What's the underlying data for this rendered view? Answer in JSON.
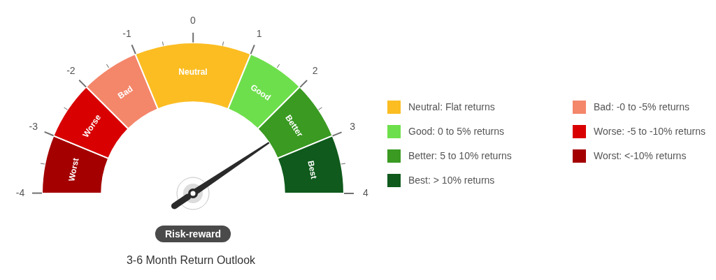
{
  "chart_data": {
    "type": "donut",
    "title": "3-6 Month Return Outlook",
    "xlabel": "Risk-reward",
    "categories": [
      "Worst: <-10% returns",
      "Worse: -5 to -10% returns",
      "Bad: -0 to -5% returns",
      "Neutral: Flat returns",
      "Good: 0 to 5% returns",
      "Better: 5 to 10% returns",
      "Best: > 10% returns"
    ],
    "values": [
      12.5,
      12.5,
      12.5,
      25,
      12.5,
      12.5,
      12.5
    ],
    "value_labels": [
      "Worst",
      "Worse",
      "Bad",
      "Neutral",
      "Good",
      "Better",
      "Best"
    ],
    "colors": [
      "#a40000",
      "#d80000",
      "#f4866a",
      "#fbbd22",
      "#6edf4c",
      "#3a9a22",
      "#0f5a1c"
    ],
    "needle": "Better: 5 to 10% returns",
    "legend": "right",
    "annotations": [
      "-4",
      "-3",
      "-2",
      "-1",
      "0",
      "1",
      "2",
      "3",
      "4"
    ]
  }
}
